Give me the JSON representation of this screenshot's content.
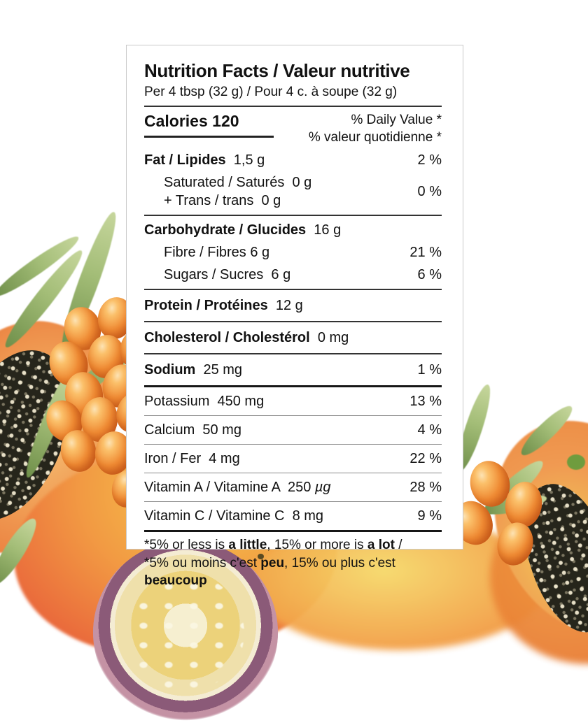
{
  "label": {
    "title": "Nutrition Facts / Valeur nutritive",
    "serving": "Per 4 tbsp (32 g) / Pour 4 c. à soupe (32 g)",
    "calories_label": "Calories",
    "calories_value": "120",
    "daily_value_en": "% Daily Value *",
    "daily_value_fr": "% valeur quotidienne *",
    "rows": [
      {
        "lines": [
          [
            {
              "t": "Fat / Lipides",
              "b": true
            },
            {
              "t": "  1,5 g"
            }
          ]
        ],
        "indent": false,
        "dv": "2 %",
        "rule": "none",
        "tall": false
      },
      {
        "lines": [
          [
            {
              "t": "Saturated / Saturés  0 g"
            }
          ],
          [
            {
              "t": "+ Trans / trans  0 g"
            }
          ]
        ],
        "indent": true,
        "dv": "0 %",
        "rule": "med",
        "tall": false
      },
      {
        "lines": [
          [
            {
              "t": "Carbohydrate / Glucides",
              "b": true
            },
            {
              "t": "  16 g"
            }
          ]
        ],
        "indent": false,
        "dv": "",
        "rule": "none",
        "tall": false
      },
      {
        "lines": [
          [
            {
              "t": "Fibre / Fibres 6 g"
            }
          ]
        ],
        "indent": true,
        "dv": "21 %",
        "rule": "none",
        "tall": false
      },
      {
        "lines": [
          [
            {
              "t": "Sugars / Sucres  6 g"
            }
          ]
        ],
        "indent": true,
        "dv": "6 %",
        "rule": "med",
        "tall": false
      },
      {
        "lines": [
          [
            {
              "t": "Protein / Protéines",
              "b": true
            },
            {
              "t": "  12 g"
            }
          ]
        ],
        "indent": false,
        "dv": "",
        "rule": "med",
        "tall": true
      },
      {
        "lines": [
          [
            {
              "t": "Cholesterol / Cholestérol",
              "b": true
            },
            {
              "t": "  0 mg"
            }
          ]
        ],
        "indent": false,
        "dv": "",
        "rule": "med",
        "tall": true
      },
      {
        "lines": [
          [
            {
              "t": "Sodium",
              "b": true
            },
            {
              "t": "  25 mg"
            }
          ]
        ],
        "indent": false,
        "dv": "1 %",
        "rule": "thick",
        "tall": true
      },
      {
        "lines": [
          [
            {
              "t": "Potassium  450 mg"
            }
          ]
        ],
        "indent": false,
        "dv": "13 %",
        "rule": "thin",
        "tall": false
      },
      {
        "lines": [
          [
            {
              "t": "Calcium  50 mg"
            }
          ]
        ],
        "indent": false,
        "dv": "4 %",
        "rule": "thin",
        "tall": false
      },
      {
        "lines": [
          [
            {
              "t": "Iron / Fer  4 mg"
            }
          ]
        ],
        "indent": false,
        "dv": "22 %",
        "rule": "thin",
        "tall": false
      },
      {
        "lines": [
          [
            {
              "t": "Vitamin A / Vitamine A  250 "
            },
            {
              "t": "µg",
              "i": true
            }
          ]
        ],
        "indent": false,
        "dv": "28 %",
        "rule": "thin",
        "tall": false
      },
      {
        "lines": [
          [
            {
              "t": "Vitamin C / Vitamine C  8 mg"
            }
          ]
        ],
        "indent": false,
        "dv": "9 %",
        "rule": "thick",
        "tall": false
      }
    ],
    "footnote_en": [
      {
        "t": "*5% or less is "
      },
      {
        "t": "a little",
        "b": true
      },
      {
        "t": ", 15% or more is "
      },
      {
        "t": "a lot",
        "b": true
      },
      {
        "t": " /"
      }
    ],
    "footnote_fr": [
      {
        "t": "*5% ou moins c'est "
      },
      {
        "t": "peu",
        "b": true
      },
      {
        "t": ", 15% ou plus c'est "
      },
      {
        "t": "beaucoup",
        "b": true
      }
    ]
  },
  "colors": {
    "card_border": "#c9c9c9",
    "text": "#111111"
  },
  "illustration": {
    "fruits": [
      "sea-buckthorn-berries",
      "sea-buckthorn-leaves",
      "papaya-halves-with-seeds",
      "mango",
      "passion-fruit-half"
    ],
    "palette": {
      "berry": "#ef8a33",
      "berry_deep": "#d35e1c",
      "leaf": "#a3bd77",
      "leaf_dark": "#6f8f4a",
      "papaya_flesh": "#f09a52",
      "papaya_seeds": "#26251b",
      "mango_yellow": "#f6cd4c",
      "mango_orange": "#f29a43",
      "mango_red": "#e8603a",
      "passion_rim": "#8b5a78",
      "passion_flesh": "#ecd27a",
      "wash_yellow": "#f6d96a",
      "wash_orange": "#ef9a3f",
      "accent_green": "#6f9c3e"
    }
  }
}
